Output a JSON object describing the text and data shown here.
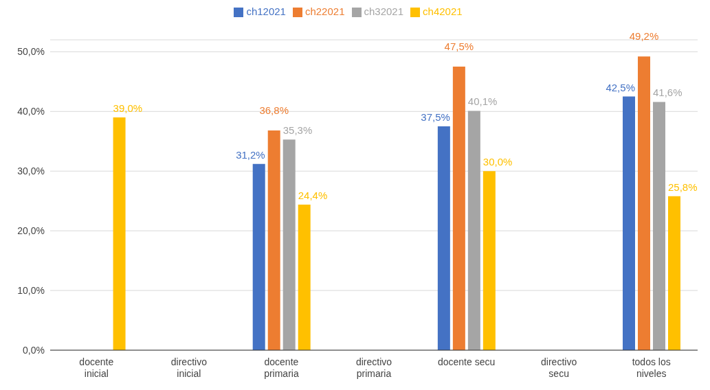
{
  "chart_data": {
    "type": "bar",
    "categories": [
      "docente inicial",
      "directivo inicial",
      "docente primaria",
      "directivo primaria",
      "docente secu",
      "directivo secu",
      "todos los niveles"
    ],
    "series": [
      {
        "name": "ch12021",
        "color": "#4472c4",
        "values": [
          null,
          null,
          31.2,
          null,
          37.5,
          null,
          42.5
        ],
        "value_labels": [
          null,
          null,
          "31,2%",
          null,
          "37,5%",
          null,
          "42,5%"
        ]
      },
      {
        "name": "ch22021",
        "color": "#ed7d31",
        "values": [
          null,
          null,
          36.8,
          null,
          47.5,
          null,
          49.2
        ],
        "value_labels": [
          null,
          null,
          "36,8%",
          null,
          "47,5%",
          null,
          "49,2%"
        ]
      },
      {
        "name": "ch32021",
        "color": "#a5a5a5",
        "values": [
          null,
          null,
          35.3,
          null,
          40.1,
          null,
          41.6
        ],
        "value_labels": [
          null,
          null,
          "35,3%",
          null,
          "40,1%",
          null,
          "41,6%"
        ]
      },
      {
        "name": "ch42021",
        "color": "#ffc000",
        "values": [
          39.0,
          null,
          24.4,
          null,
          30.0,
          null,
          25.8
        ],
        "value_labels": [
          "39,0%",
          null,
          "24,4%",
          null,
          "30,0%",
          null,
          "25,8%"
        ]
      }
    ],
    "ylim": [
      0,
      52
    ],
    "yticks": [
      {
        "value": 0,
        "label": "0,0%"
      },
      {
        "value": 10,
        "label": "10,0%"
      },
      {
        "value": 20,
        "label": "20,0%"
      },
      {
        "value": 30,
        "label": "30,0%"
      },
      {
        "value": 40,
        "label": "40,0%"
      },
      {
        "value": 50,
        "label": "50,0%"
      }
    ],
    "grid": "y",
    "legend": "top"
  }
}
